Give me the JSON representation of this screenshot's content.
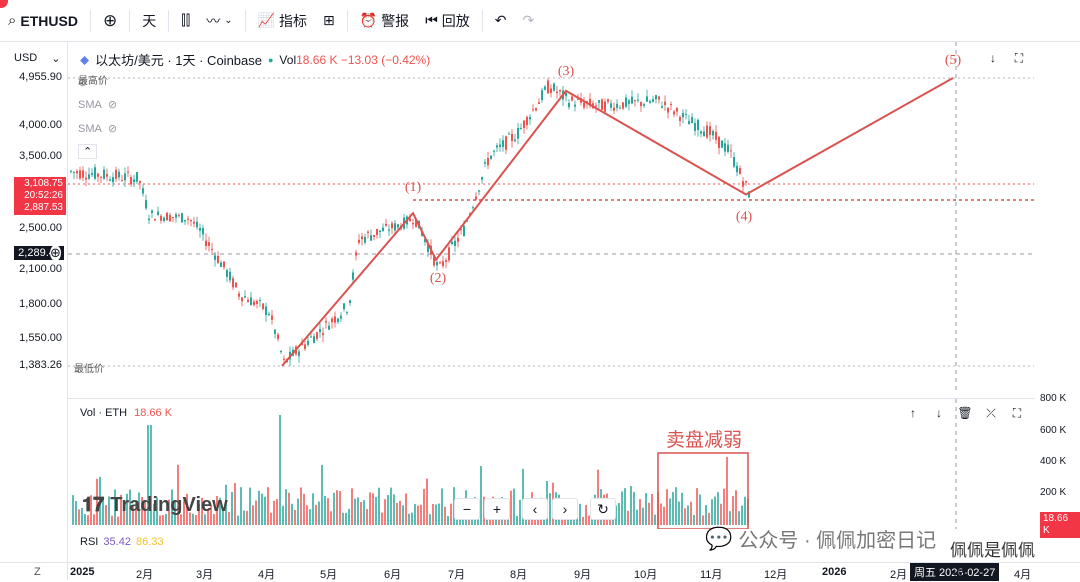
{
  "topbar": {
    "symbol": "ETHUSD",
    "interval": "天",
    "indicators": "指标",
    "alerts": "警报",
    "replay": "回放"
  },
  "legend": {
    "title": "以太坊/美元 · 1天 · Coinbase",
    "vol_label": "Vol",
    "vol_value": "18.66 K",
    "change": "−13.03 (−0.42%)"
  },
  "indicators": [
    "SMA",
    "SMA",
    "SMA"
  ],
  "currency": "USD",
  "price_axis": [
    {
      "label": "4,955.90",
      "price": 4955.9
    },
    {
      "label": "4,000.00",
      "price": 4000
    },
    {
      "label": "3,500.00",
      "price": 3500
    },
    {
      "label": "2,500.00",
      "price": 2500
    },
    {
      "label": "2,100.00",
      "price": 2100
    },
    {
      "label": "1,800.00",
      "price": 1800
    },
    {
      "label": "1,550.00",
      "price": 1550
    },
    {
      "label": "1,383.26",
      "price": 1383.26
    }
  ],
  "high_label": "最高价",
  "low_label": "最低价",
  "price_tag": {
    "price": "3,108.75",
    "time": "20:52:26",
    "low": "2,887.53",
    "symbol": "ETHUSD"
  },
  "cross_price": "2,289.42",
  "wave_labels": [
    "(1)",
    "(2)",
    "(3)",
    "(4)",
    "(5)"
  ],
  "vol_panel": {
    "title": "Vol · ETH",
    "value": "18.66 K",
    "axis": [
      "800 K",
      "600 K",
      "400 K",
      "200 K"
    ],
    "current": "18.66 K",
    "annotation": "卖盘减弱"
  },
  "rsi": {
    "label": "RSI",
    "value": "35.42",
    "value2": "86.33"
  },
  "time_axis": [
    "2025",
    "2月",
    "3月",
    "4月",
    "5月",
    "6月",
    "7月",
    "8月",
    "9月",
    "10月",
    "11月",
    "12月",
    "2026",
    "2月",
    "3月",
    "4月"
  ],
  "cursor_date": "周五 2026-02-27",
  "watermark": "TradingView",
  "wechat": "公众号 · 佩佩加密日记",
  "corner_text": "佩佩是佩佩",
  "colors": {
    "up": "#26a69a",
    "down": "#ef5350",
    "wave": "#d9534f",
    "tag": "#f23645"
  }
}
